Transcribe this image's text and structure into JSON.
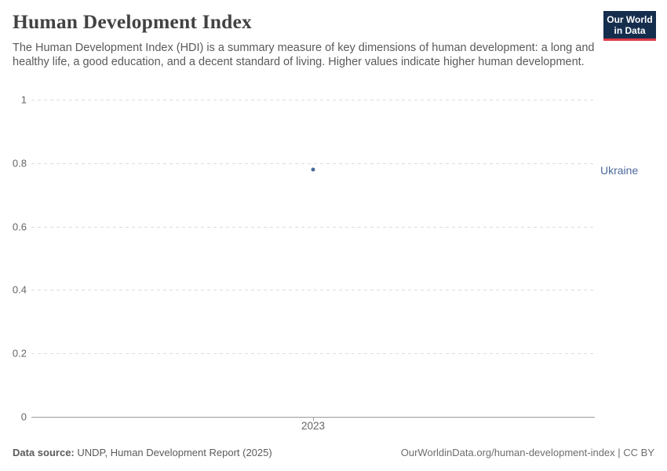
{
  "header": {
    "title": "Human Development Index",
    "subtitle": "The Human Development Index (HDI) is a summary measure of key dimensions of human development: a long and healthy life, a good education, and a decent standard of living. Higher values indicate higher human development.",
    "logo": {
      "line1": "Our World",
      "line2": "in Data",
      "bg_color": "#152e4d",
      "bar_color": "#dc3a47"
    }
  },
  "chart_data": {
    "type": "scatter",
    "title": "Human Development Index",
    "x": [
      2023
    ],
    "series": [
      {
        "name": "Ukraine",
        "values": [
          0.78
        ],
        "color": "#4c6a9c"
      }
    ],
    "xlabel": "",
    "ylabel": "",
    "ylim": [
      0,
      1
    ],
    "yticks": [
      0,
      0.2,
      0.4,
      0.6,
      0.8,
      1
    ],
    "ytick_labels": [
      "0",
      "0.2",
      "0.4",
      "0.6",
      "0.8",
      "1"
    ],
    "xtick_labels": [
      "2023"
    ],
    "grid": "horizontal-dashed",
    "legend_position": "right-entity-label",
    "entity_label": "Ukraine"
  },
  "footer": {
    "source_label": "Data source:",
    "source_text": "UNDP, Human Development Report (2025)",
    "right_text": "OurWorldinData.org/human-development-index | CC BY"
  }
}
